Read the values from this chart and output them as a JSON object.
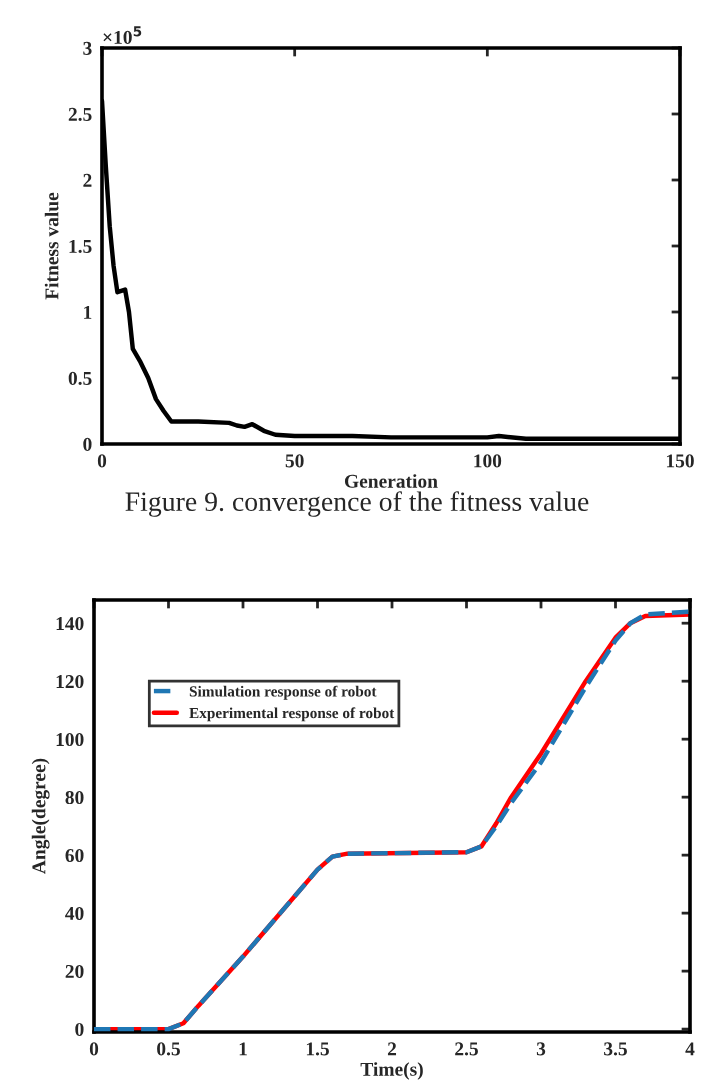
{
  "chart_data": [
    {
      "type": "line",
      "xlabel": "Generation",
      "ylabel": "Fitness value",
      "annotations": [
        "×10$^{5}$",
        "Figure 9. convergence of the fitness value"
      ],
      "series": [
        {
          "color": "#000000",
          "x": [
            0,
            1,
            2,
            3,
            4,
            6,
            7,
            8,
            10,
            12,
            14,
            16,
            18,
            25,
            33,
            35,
            37,
            39,
            42,
            45,
            50,
            65,
            75,
            100,
            103,
            110,
            150
          ],
          "values": [
            2.6,
            2.1,
            1.65,
            1.35,
            1.15,
            1.17,
            1.0,
            0.72,
            0.62,
            0.5,
            0.34,
            0.25,
            0.17,
            0.17,
            0.16,
            0.14,
            0.13,
            0.15,
            0.1,
            0.07,
            0.06,
            0.06,
            0.05,
            0.05,
            0.06,
            0.04,
            0.04
          ]
        }
      ],
      "xlim": [
        0,
        150
      ],
      "xticks": [
        0,
        50,
        100,
        150
      ],
      "ylim": [
        0,
        3
      ],
      "yticks": [
        0,
        0.5,
        1,
        1.5,
        2,
        2.5,
        3
      ],
      "grid": false,
      "legend": false,
      "line_style": "solid"
    },
    {
      "type": "line",
      "xlabel": "Time(s)",
      "ylabel": "Angle(degree)",
      "series": [
        {
          "name": "Simulation response of robot",
          "color": "#1f77b4",
          "line_style": "dashed",
          "x": [
            0,
            0.5,
            0.6,
            0.7,
            1.0,
            1.5,
            1.6,
            1.7,
            2.5,
            2.6,
            2.7,
            2.8,
            3.0,
            3.3,
            3.5,
            3.6,
            3.7,
            4.0
          ],
          "values": [
            0,
            0,
            2,
            8,
            25,
            55,
            59.5,
            60.5,
            61,
            63,
            70,
            78,
            92,
            118,
            134,
            140,
            143,
            144
          ]
        },
        {
          "name": "Experimental response of robot",
          "color": "#ff0000",
          "line_style": "solid",
          "x": [
            0,
            0.5,
            0.6,
            0.7,
            1.0,
            1.5,
            1.6,
            1.7,
            2.5,
            2.6,
            2.7,
            2.8,
            3.0,
            3.3,
            3.5,
            3.6,
            3.7,
            4.0
          ],
          "values": [
            0,
            0,
            2,
            8,
            25,
            55,
            59.5,
            60.5,
            61,
            63,
            71,
            80,
            95,
            120,
            135,
            140,
            142.5,
            143
          ]
        }
      ],
      "xlim": [
        0,
        4
      ],
      "xticks": [
        0,
        0.5,
        1,
        1.5,
        2,
        2.5,
        3,
        3.5,
        4
      ],
      "ylim": [
        -1,
        148
      ],
      "yticks": [
        0,
        20,
        40,
        60,
        80,
        100,
        120,
        140
      ],
      "grid": false,
      "legend": "top left"
    }
  ]
}
